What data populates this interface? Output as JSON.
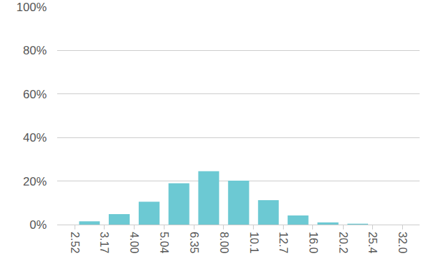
{
  "chart_data": {
    "type": "histogram",
    "bins": [
      2.52,
      3.17,
      {
        "value": 4,
        "label": "4.00"
      },
      5.04,
      6.35,
      {
        "value": 8,
        "label": "8.00"
      },
      10.1,
      12.7,
      {
        "value": 16,
        "label": "16.0"
      },
      20.2,
      25.4,
      {
        "value": 32,
        "label": "32.0"
      }
    ],
    "values": [
      1.5,
      4.8,
      10.5,
      19,
      24.5,
      20.2,
      11.2,
      4.2,
      1.0,
      0.4,
      0
    ],
    "color": "#6cc9d3",
    "log": "x",
    "xlim": [
      2.2,
      36.6
    ],
    "xticks": [
      2.52,
      3.17,
      {
        "value": 4,
        "label": "4.00"
      },
      5.04,
      6.35,
      {
        "value": 8,
        "label": "8.00"
      },
      10.1,
      12.7,
      {
        "value": 16,
        "label": "16.0"
      },
      20.2,
      25.4,
      {
        "value": 32,
        "label": "32.0"
      }
    ],
    "ylim": [
      0,
      100
    ],
    "yticks": [
      {
        "value": 0,
        "label": "0%"
      },
      {
        "value": 20,
        "label": "20%"
      },
      {
        "value": 40,
        "label": "40%"
      },
      {
        "value": 60,
        "label": "60%"
      },
      {
        "value": 80,
        "label": "80%"
      },
      {
        "value": 100,
        "label": "100%"
      }
    ],
    "grid": true
  }
}
